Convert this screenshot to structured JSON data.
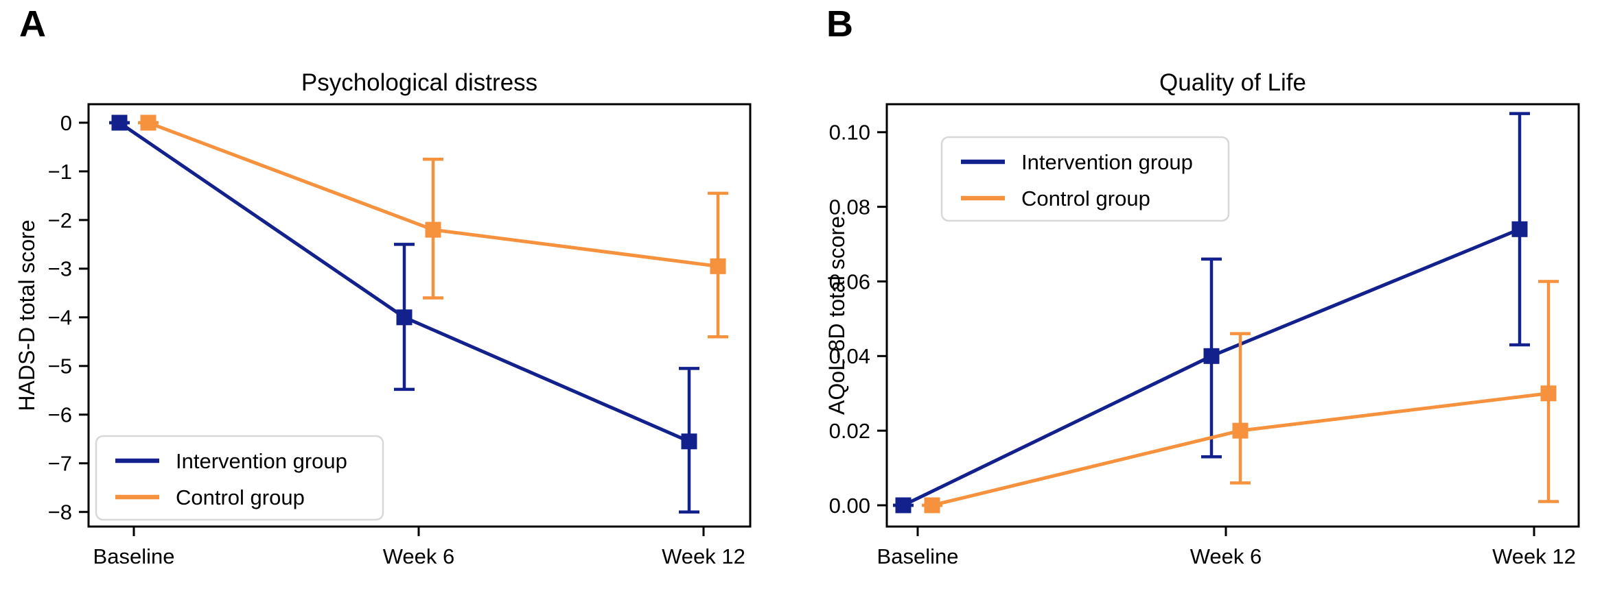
{
  "figure": {
    "panel_labels": [
      "A",
      "B"
    ]
  },
  "colors": {
    "intervention": "#13218C",
    "control": "#F6913D",
    "axis": "#000000",
    "legend_border": "#D8D8D8",
    "legend_fill": "#FFFFFF",
    "text": "#000000"
  },
  "chart_data": [
    {
      "type": "line",
      "panel": "A",
      "title": "Psychological distress",
      "xlabel": "",
      "ylabel": "HADS-D total score",
      "categories": [
        "Baseline",
        "Week 6",
        "Week 12"
      ],
      "yticks": [
        0,
        -1,
        -2,
        -3,
        -4,
        -5,
        -6,
        -7,
        -8
      ],
      "ytick_labels": [
        "0",
        "−1",
        "−2",
        "−3",
        "−4",
        "−5",
        "−6",
        "−7",
        "−8"
      ],
      "ylim": [
        -8.3,
        0.38
      ],
      "grid": false,
      "legend_position": "lower-left",
      "series": [
        {
          "name": "Intervention group",
          "color": "#13218C",
          "values": [
            0,
            -4.0,
            -6.55
          ],
          "ci_low": [
            0,
            -5.48,
            -8.0
          ],
          "ci_high": [
            0,
            -2.5,
            -5.05
          ]
        },
        {
          "name": "Control group",
          "color": "#F6913D",
          "values": [
            0,
            -2.2,
            -2.95
          ],
          "ci_low": [
            0,
            -3.6,
            -4.4
          ],
          "ci_high": [
            0,
            -0.75,
            -1.45
          ]
        }
      ]
    },
    {
      "type": "line",
      "panel": "B",
      "title": "Quality of Life",
      "xlabel": "",
      "ylabel": "AQoL-8D total score",
      "categories": [
        "Baseline",
        "Week 6",
        "Week 12"
      ],
      "yticks": [
        0.0,
        0.02,
        0.04,
        0.06,
        0.08,
        0.1
      ],
      "ytick_labels": [
        "0.00",
        "0.02",
        "0.04",
        "0.06",
        "0.08",
        "0.10"
      ],
      "ylim": [
        -0.0057,
        0.1075
      ],
      "grid": false,
      "legend_position": "upper-left",
      "series": [
        {
          "name": "Intervention group",
          "color": "#13218C",
          "values": [
            0.0,
            0.04,
            0.074
          ],
          "ci_low": [
            0.0,
            0.013,
            0.043
          ],
          "ci_high": [
            0.0,
            0.066,
            0.105
          ]
        },
        {
          "name": "Control group",
          "color": "#F6913D",
          "values": [
            0.0,
            0.02,
            0.03
          ],
          "ci_low": [
            0.0,
            0.006,
            0.001
          ],
          "ci_high": [
            0.0,
            0.046,
            0.06
          ]
        }
      ]
    }
  ]
}
